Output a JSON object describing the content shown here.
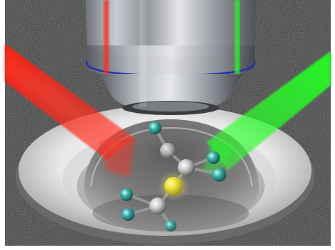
{
  "scene": {
    "subject": "microscope-objective-over-molecule-in-droplet",
    "colors": {
      "background": "#2a2a2a",
      "frame": "#ffffff",
      "laser_red": "#ff2a1a",
      "laser_green": "#22ff22",
      "objective_metal": "#b8bcc4",
      "objective_ring": "#1a2a9a",
      "dish": "#e6e6e6",
      "droplet": "#8a8a8a",
      "atom_teal": "#3fb0a8",
      "atom_yellow": "#e8e030",
      "atom_grey": "#c8c8c8"
    }
  }
}
